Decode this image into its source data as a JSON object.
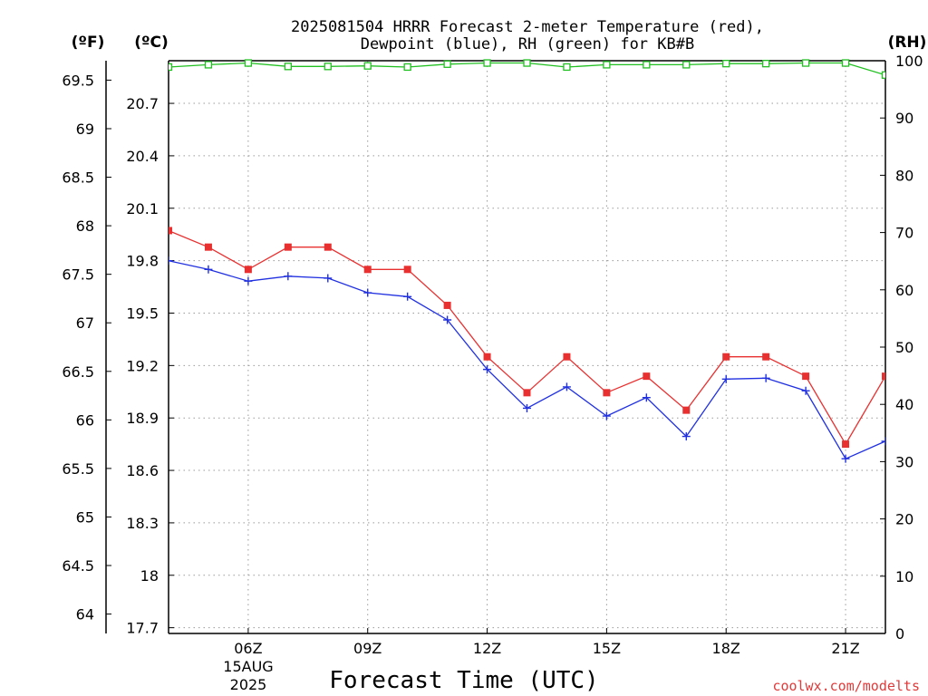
{
  "chart_data": {
    "type": "line",
    "title_line1": "2025081504 HRRR Forecast 2-meter Temperature (red),",
    "title_line2": "Dewpoint (blue), RH (green) for KB#B",
    "xlabel": "Forecast Time (UTC)",
    "x_tick_labels": [
      "06Z",
      "09Z",
      "12Z",
      "15Z",
      "18Z",
      "21Z"
    ],
    "x_date_label": [
      "15AUG",
      "2025"
    ],
    "x_hours": [
      "04Z",
      "05Z",
      "06Z",
      "07Z",
      "08Z",
      "09Z",
      "10Z",
      "11Z",
      "12Z",
      "13Z",
      "14Z",
      "15Z",
      "16Z",
      "17Z",
      "18Z",
      "19Z",
      "20Z",
      "21Z",
      "22Z"
    ],
    "x_range_hours_since_start": [
      0,
      18
    ],
    "axes": {
      "fahrenheit": {
        "unit_label": "(ºF)",
        "ticks": [
          "64",
          "64.5",
          "65",
          "65.5",
          "66",
          "66.5",
          "67",
          "67.5",
          "68",
          "68.5",
          "69",
          "69.5"
        ],
        "range": [
          63.8,
          69.7
        ]
      },
      "celsius": {
        "unit_label": "(ºC)",
        "ticks": [
          "17.7",
          "18",
          "18.3",
          "18.6",
          "18.9",
          "19.2",
          "19.5",
          "19.8",
          "20.1",
          "20.4",
          "20.7"
        ],
        "range": [
          17.667,
          20.944
        ]
      },
      "rh": {
        "unit_label": "(RH)",
        "ticks": [
          "0",
          "10",
          "20",
          "30",
          "40",
          "50",
          "60",
          "70",
          "80",
          "90",
          "100"
        ],
        "range": [
          0,
          100
        ]
      }
    },
    "grid": true,
    "series": [
      {
        "name": "Temperature",
        "unit": "F",
        "color": "#e83030",
        "marker": "square",
        "values": [
          67.95,
          67.78,
          67.55,
          67.78,
          67.78,
          67.55,
          67.55,
          67.18,
          66.65,
          66.28,
          66.65,
          66.28,
          66.45,
          66.1,
          66.65,
          66.65,
          66.45,
          65.75,
          66.45
        ]
      },
      {
        "name": "Dewpoint",
        "unit": "F",
        "color": "#2030e0",
        "marker": "plus",
        "values": [
          67.64,
          67.55,
          67.43,
          67.48,
          67.46,
          67.31,
          67.27,
          67.03,
          66.52,
          66.12,
          66.34,
          66.04,
          66.23,
          65.83,
          66.42,
          66.43,
          66.3,
          65.6,
          65.78
        ]
      },
      {
        "name": "RH",
        "unit": "%",
        "color": "#20c020",
        "marker": "open-square",
        "values": [
          98.9,
          99.3,
          99.6,
          99.0,
          99.0,
          99.1,
          98.9,
          99.4,
          99.6,
          99.6,
          98.9,
          99.3,
          99.3,
          99.3,
          99.5,
          99.5,
          99.6,
          99.6,
          97.5
        ]
      }
    ],
    "watermark": "coolwx.com/modelts"
  }
}
